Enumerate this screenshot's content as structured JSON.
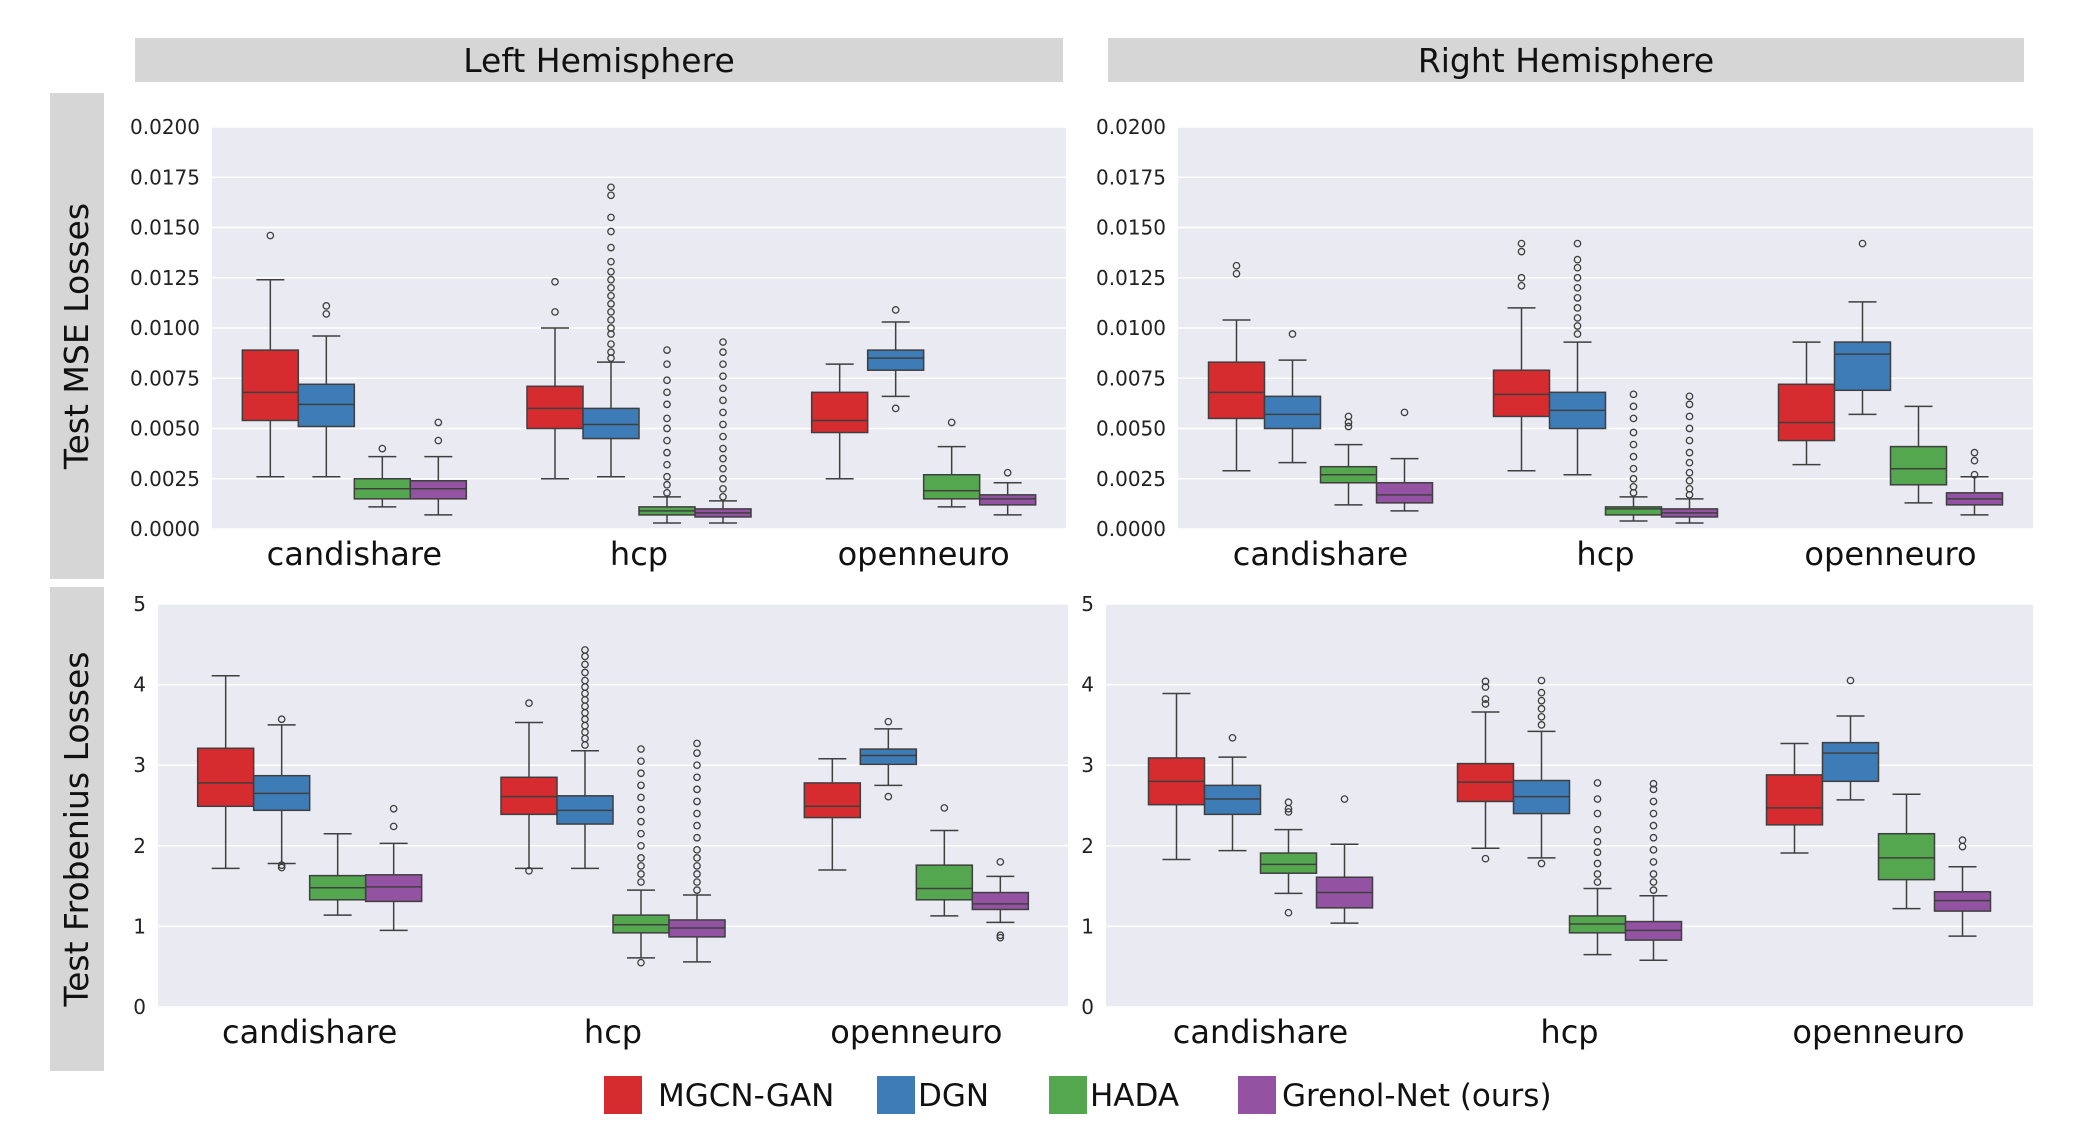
{
  "column_headers": [
    "Left Hemisphere",
    "Right Hemisphere"
  ],
  "row_headers": [
    "Test MSE Losses",
    "Test Frobenius Losses"
  ],
  "legend": [
    {
      "label": "MGCN-GAN",
      "color": "#d62b2f"
    },
    {
      "label": "DGN",
      "color": "#3e7cb7"
    },
    {
      "label": "HADA",
      "color": "#55a74f"
    },
    {
      "label": "Grenol-Net (ours)",
      "color": "#9353a2"
    }
  ],
  "chart_data": [
    {
      "type": "box",
      "title": "Left Hemisphere",
      "ylabel": "Test MSE Losses",
      "categories": [
        "candishare",
        "hcp",
        "openneuro"
      ],
      "ylim": [
        0,
        0.02
      ],
      "yticks": [
        "0.0000",
        "0.0025",
        "0.0050",
        "0.0075",
        "0.0100",
        "0.0125",
        "0.0150",
        "0.0175",
        "0.0200"
      ],
      "series": [
        {
          "name": "MGCN-GAN",
          "boxes": [
            {
              "whislo": 0.0026,
              "q1": 0.0054,
              "med": 0.0068,
              "q3": 0.0089,
              "whishi": 0.0124,
              "fliers": [
                0.0146
              ]
            },
            {
              "whislo": 0.0025,
              "q1": 0.005,
              "med": 0.006,
              "q3": 0.0071,
              "whishi": 0.01,
              "fliers": [
                0.0108,
                0.0123
              ]
            },
            {
              "whislo": 0.0025,
              "q1": 0.0048,
              "med": 0.0054,
              "q3": 0.0068,
              "whishi": 0.0082,
              "fliers": []
            }
          ]
        },
        {
          "name": "DGN",
          "boxes": [
            {
              "whislo": 0.0026,
              "q1": 0.0051,
              "med": 0.0062,
              "q3": 0.0072,
              "whishi": 0.0096,
              "fliers": [
                0.0107,
                0.0111
              ]
            },
            {
              "whislo": 0.0026,
              "q1": 0.0045,
              "med": 0.0052,
              "q3": 0.006,
              "whishi": 0.0083,
              "fliers": [
                0.0085,
                0.0088,
                0.0092,
                0.0097,
                0.01,
                0.0104,
                0.0108,
                0.0112,
                0.0116,
                0.012,
                0.0124,
                0.0128,
                0.0133,
                0.014,
                0.0148,
                0.0155,
                0.0166,
                0.017
              ]
            },
            {
              "whislo": 0.0066,
              "q1": 0.0079,
              "med": 0.0085,
              "q3": 0.0089,
              "whishi": 0.0103,
              "fliers": [
                0.006,
                0.0109
              ]
            }
          ]
        },
        {
          "name": "HADA",
          "boxes": [
            {
              "whislo": 0.0011,
              "q1": 0.0015,
              "med": 0.002,
              "q3": 0.0025,
              "whishi": 0.0036,
              "fliers": [
                0.004
              ]
            },
            {
              "whislo": 0.0003,
              "q1": 0.0007,
              "med": 0.0009,
              "q3": 0.0011,
              "whishi": 0.0016,
              "fliers": [
                0.0018,
                0.0022,
                0.0026,
                0.0032,
                0.0038,
                0.0044,
                0.005,
                0.0055,
                0.0062,
                0.0068,
                0.0074,
                0.0082,
                0.0089
              ]
            },
            {
              "whislo": 0.0011,
              "q1": 0.0015,
              "med": 0.0019,
              "q3": 0.0027,
              "whishi": 0.0041,
              "fliers": [
                0.0053
              ]
            }
          ]
        },
        {
          "name": "Grenol-Net (ours)",
          "boxes": [
            {
              "whislo": 0.0007,
              "q1": 0.0015,
              "med": 0.002,
              "q3": 0.0024,
              "whishi": 0.0036,
              "fliers": [
                0.0044,
                0.0053
              ]
            },
            {
              "whislo": 0.0003,
              "q1": 0.0006,
              "med": 0.0008,
              "q3": 0.001,
              "whishi": 0.0014,
              "fliers": [
                0.0016,
                0.002,
                0.0025,
                0.003,
                0.0035,
                0.004,
                0.0046,
                0.0052,
                0.0058,
                0.0064,
                0.007,
                0.0076,
                0.0082,
                0.0088,
                0.0093
              ]
            },
            {
              "whislo": 0.0007,
              "q1": 0.0012,
              "med": 0.0015,
              "q3": 0.0017,
              "whishi": 0.0023,
              "fliers": [
                0.0028
              ]
            }
          ]
        }
      ]
    },
    {
      "type": "box",
      "title": "Right Hemisphere",
      "ylabel": "",
      "categories": [
        "candishare",
        "hcp",
        "openneuro"
      ],
      "ylim": [
        0,
        0.02
      ],
      "yticks": [
        "0.0000",
        "0.0025",
        "0.0050",
        "0.0075",
        "0.0100",
        "0.0125",
        "0.0150",
        "0.0175",
        "0.0200"
      ],
      "series": [
        {
          "name": "MGCN-GAN",
          "boxes": [
            {
              "whislo": 0.0029,
              "q1": 0.0055,
              "med": 0.0068,
              "q3": 0.0083,
              "whishi": 0.0104,
              "fliers": [
                0.0127,
                0.0131
              ]
            },
            {
              "whislo": 0.0029,
              "q1": 0.0056,
              "med": 0.0067,
              "q3": 0.0079,
              "whishi": 0.011,
              "fliers": [
                0.0121,
                0.0125,
                0.0138,
                0.0142
              ]
            },
            {
              "whislo": 0.0032,
              "q1": 0.0044,
              "med": 0.0053,
              "q3": 0.0072,
              "whishi": 0.0093,
              "fliers": []
            }
          ]
        },
        {
          "name": "DGN",
          "boxes": [
            {
              "whislo": 0.0033,
              "q1": 0.005,
              "med": 0.0057,
              "q3": 0.0066,
              "whishi": 0.0084,
              "fliers": [
                0.0097
              ]
            },
            {
              "whislo": 0.0027,
              "q1": 0.005,
              "med": 0.0059,
              "q3": 0.0068,
              "whishi": 0.0093,
              "fliers": [
                0.0097,
                0.0101,
                0.0105,
                0.011,
                0.0115,
                0.012,
                0.0125,
                0.013,
                0.0134,
                0.0142
              ]
            },
            {
              "whislo": 0.0057,
              "q1": 0.0069,
              "med": 0.0087,
              "q3": 0.0093,
              "whishi": 0.0113,
              "fliers": [
                0.0142
              ]
            }
          ]
        },
        {
          "name": "HADA",
          "boxes": [
            {
              "whislo": 0.0012,
              "q1": 0.0023,
              "med": 0.0027,
              "q3": 0.0031,
              "whishi": 0.0042,
              "fliers": [
                0.0051,
                0.0053,
                0.0056
              ]
            },
            {
              "whislo": 0.0004,
              "q1": 0.0007,
              "med": 0.001,
              "q3": 0.0011,
              "whishi": 0.0016,
              "fliers": [
                0.0018,
                0.0021,
                0.0025,
                0.003,
                0.0036,
                0.0042,
                0.0048,
                0.0055,
                0.0061,
                0.0067
              ]
            },
            {
              "whislo": 0.0013,
              "q1": 0.0022,
              "med": 0.003,
              "q3": 0.0041,
              "whishi": 0.0061,
              "fliers": []
            }
          ]
        },
        {
          "name": "Grenol-Net (ours)",
          "boxes": [
            {
              "whislo": 0.0009,
              "q1": 0.0013,
              "med": 0.0017,
              "q3": 0.0023,
              "whishi": 0.0035,
              "fliers": [
                0.0058
              ]
            },
            {
              "whislo": 0.0003,
              "q1": 0.0006,
              "med": 0.0008,
              "q3": 0.001,
              "whishi": 0.0015,
              "fliers": [
                0.0017,
                0.002,
                0.0024,
                0.0028,
                0.0033,
                0.0038,
                0.0044,
                0.005,
                0.0056,
                0.0062,
                0.0066
              ]
            },
            {
              "whislo": 0.0007,
              "q1": 0.0012,
              "med": 0.0015,
              "q3": 0.0018,
              "whishi": 0.0026,
              "fliers": [
                0.0027,
                0.0034,
                0.0038
              ]
            }
          ]
        }
      ]
    },
    {
      "type": "box",
      "title": "Left Hemisphere",
      "ylabel": "Test Frobenius Losses",
      "categories": [
        "candishare",
        "hcp",
        "openneuro"
      ],
      "ylim": [
        0,
        5
      ],
      "yticks": [
        "0",
        "1",
        "2",
        "3",
        "4",
        "5"
      ],
      "series": [
        {
          "name": "MGCN-GAN",
          "boxes": [
            {
              "whislo": 1.72,
              "q1": 2.49,
              "med": 2.78,
              "q3": 3.21,
              "whishi": 4.11,
              "fliers": []
            },
            {
              "whislo": 1.72,
              "q1": 2.39,
              "med": 2.61,
              "q3": 2.85,
              "whishi": 3.53,
              "fliers": [
                1.69,
                3.77
              ]
            },
            {
              "whislo": 1.7,
              "q1": 2.35,
              "med": 2.49,
              "q3": 2.78,
              "whishi": 3.08,
              "fliers": []
            }
          ]
        },
        {
          "name": "DGN",
          "boxes": [
            {
              "whislo": 1.78,
              "q1": 2.44,
              "med": 2.65,
              "q3": 2.87,
              "whishi": 3.5,
              "fliers": [
                1.73,
                1.76,
                3.57
              ]
            },
            {
              "whislo": 1.72,
              "q1": 2.27,
              "med": 2.44,
              "q3": 2.62,
              "whishi": 3.18,
              "fliers": [
                3.25,
                3.33,
                3.41,
                3.49,
                3.57,
                3.65,
                3.73,
                3.81,
                3.89,
                3.97,
                4.05,
                4.15,
                4.25,
                4.35,
                4.43
              ]
            },
            {
              "whislo": 2.75,
              "q1": 3.01,
              "med": 3.12,
              "q3": 3.2,
              "whishi": 3.45,
              "fliers": [
                2.61,
                3.54
              ]
            }
          ]
        },
        {
          "name": "HADA",
          "boxes": [
            {
              "whislo": 1.14,
              "q1": 1.33,
              "med": 1.48,
              "q3": 1.63,
              "whishi": 2.15,
              "fliers": []
            },
            {
              "whislo": 0.61,
              "q1": 0.92,
              "med": 1.02,
              "q3": 1.14,
              "whishi": 1.45,
              "fliers": [
                0.55,
                1.55,
                1.65,
                1.75,
                1.85,
                2.0,
                2.15,
                2.3,
                2.45,
                2.6,
                2.75,
                2.9,
                3.05,
                3.2
              ]
            },
            {
              "whislo": 1.13,
              "q1": 1.33,
              "med": 1.47,
              "q3": 1.76,
              "whishi": 2.19,
              "fliers": [
                2.47
              ]
            }
          ]
        },
        {
          "name": "Grenol-Net (ours)",
          "boxes": [
            {
              "whislo": 0.95,
              "q1": 1.31,
              "med": 1.49,
              "q3": 1.64,
              "whishi": 2.03,
              "fliers": [
                2.24,
                2.46
              ]
            },
            {
              "whislo": 0.56,
              "q1": 0.87,
              "med": 0.98,
              "q3": 1.08,
              "whishi": 1.39,
              "fliers": [
                1.45,
                1.55,
                1.65,
                1.75,
                1.85,
                1.95,
                2.1,
                2.25,
                2.4,
                2.55,
                2.7,
                2.85,
                3.0,
                3.15,
                3.27
              ]
            },
            {
              "whislo": 1.05,
              "q1": 1.21,
              "med": 1.28,
              "q3": 1.42,
              "whishi": 1.62,
              "fliers": [
                0.86,
                0.89,
                1.8
              ]
            }
          ]
        }
      ]
    },
    {
      "type": "box",
      "title": "Right Hemisphere",
      "ylabel": "",
      "categories": [
        "candishare",
        "hcp",
        "openneuro"
      ],
      "ylim": [
        0,
        5
      ],
      "yticks": [
        "0",
        "1",
        "2",
        "3",
        "4",
        "5"
      ],
      "series": [
        {
          "name": "MGCN-GAN",
          "boxes": [
            {
              "whislo": 1.83,
              "q1": 2.51,
              "med": 2.8,
              "q3": 3.09,
              "whishi": 3.89,
              "fliers": []
            },
            {
              "whislo": 1.97,
              "q1": 2.55,
              "med": 2.79,
              "q3": 3.02,
              "whishi": 3.66,
              "fliers": [
                1.84,
                3.76,
                3.82,
                3.97,
                4.04
              ]
            },
            {
              "whislo": 1.91,
              "q1": 2.26,
              "med": 2.47,
              "q3": 2.88,
              "whishi": 3.27,
              "fliers": []
            }
          ]
        },
        {
          "name": "DGN",
          "boxes": [
            {
              "whislo": 1.94,
              "q1": 2.39,
              "med": 2.58,
              "q3": 2.75,
              "whishi": 3.1,
              "fliers": [
                3.34
              ]
            },
            {
              "whislo": 1.85,
              "q1": 2.4,
              "med": 2.61,
              "q3": 2.81,
              "whishi": 3.42,
              "fliers": [
                1.78,
                3.5,
                3.6,
                3.7,
                3.8,
                3.9,
                4.05
              ]
            },
            {
              "whislo": 2.57,
              "q1": 2.8,
              "med": 3.15,
              "q3": 3.28,
              "whishi": 3.61,
              "fliers": [
                4.05
              ]
            }
          ]
        },
        {
          "name": "HADA",
          "boxes": [
            {
              "whislo": 1.41,
              "q1": 1.66,
              "med": 1.77,
              "q3": 1.91,
              "whishi": 2.2,
              "fliers": [
                1.17,
                2.42,
                2.46,
                2.54
              ]
            },
            {
              "whislo": 0.65,
              "q1": 0.92,
              "med": 1.03,
              "q3": 1.13,
              "whishi": 1.47,
              "fliers": [
                1.55,
                1.65,
                1.78,
                1.92,
                2.05,
                2.2,
                2.4,
                2.58,
                2.78
              ]
            },
            {
              "whislo": 1.22,
              "q1": 1.58,
              "med": 1.85,
              "q3": 2.15,
              "whishi": 2.64,
              "fliers": []
            }
          ]
        },
        {
          "name": "Grenol-Net (ours)",
          "boxes": [
            {
              "whislo": 1.04,
              "q1": 1.23,
              "med": 1.42,
              "q3": 1.61,
              "whishi": 2.02,
              "fliers": [
                2.58
              ]
            },
            {
              "whislo": 0.58,
              "q1": 0.83,
              "med": 0.95,
              "q3": 1.06,
              "whishi": 1.38,
              "fliers": [
                1.45,
                1.55,
                1.65,
                1.8,
                1.95,
                2.1,
                2.25,
                2.4,
                2.55,
                2.7,
                2.77
              ]
            },
            {
              "whislo": 0.88,
              "q1": 1.19,
              "med": 1.32,
              "q3": 1.43,
              "whishi": 1.74,
              "fliers": [
                1.99,
                2.07
              ]
            }
          ]
        }
      ]
    }
  ]
}
